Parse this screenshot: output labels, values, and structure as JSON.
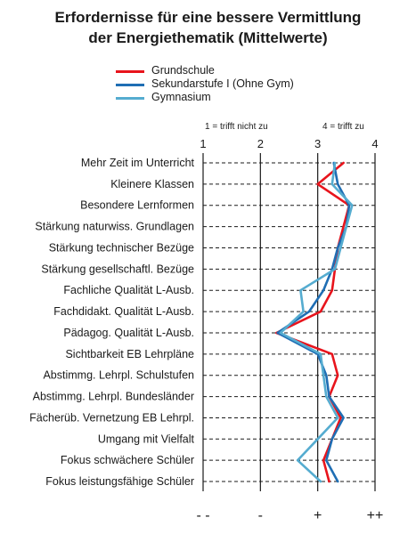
{
  "title_line1": "Erfordernisse für eine bessere Vermittlung",
  "title_line2": "der Energiethematik  (Mittelwerte)",
  "scale_note_left": "1 = trifft nicht zu",
  "scale_note_right": "4 = trifft zu",
  "chart_data": {
    "type": "line",
    "orientation": "horizontal-profile",
    "xlim": [
      1,
      4
    ],
    "x_ticks": [
      "1",
      "2",
      "3",
      "4"
    ],
    "bottom_symbols": [
      "- -",
      "-",
      "+",
      "++"
    ],
    "grid": true,
    "legend_position": "top-left",
    "categories": [
      "Mehr Zeit im Unterricht",
      "Kleinere Klassen",
      "Besondere Lernformen",
      "Stärkung naturwiss. Grundlagen",
      "Stärkung technischer Bezüge",
      "Stärkung gesellschaftl. Bezüge",
      "Fachliche Qualität L-Ausb.",
      "Fachdidakt. Qualität L-Ausb.",
      "Pädagog. Qualität L-Ausb.",
      "Sichtbarkeit EB Lehrpläne",
      "Abstimmg. Lehrpl. Schulstufen",
      "Abstimmg. Lehrpl. Bundesländer",
      "Fächerüb. Vernetzung EB Lehrpl.",
      "Umgang mit Vielfalt",
      "Fokus schwächere Schüler",
      "Fokus leistungsfähige Schüler"
    ],
    "series": [
      {
        "name": "Grundschule",
        "color": "#e8141c",
        "values": [
          3.45,
          3.0,
          3.55,
          3.45,
          3.35,
          3.3,
          3.25,
          3.05,
          2.28,
          3.25,
          3.35,
          3.2,
          3.4,
          3.25,
          3.1,
          3.2
        ]
      },
      {
        "name": "Sekundarstufe I (Ohne Gym)",
        "color": "#1f6eb4",
        "values": [
          3.28,
          3.35,
          3.55,
          3.5,
          3.35,
          3.25,
          3.1,
          2.85,
          2.3,
          3.0,
          3.15,
          3.2,
          3.45,
          3.25,
          3.15,
          3.35
        ]
      },
      {
        "name": "Gymnasium",
        "color": "#55acd0",
        "values": [
          3.3,
          3.25,
          3.6,
          3.5,
          3.4,
          3.3,
          2.7,
          2.75,
          2.35,
          3.05,
          3.1,
          3.15,
          3.35,
          3.0,
          2.65,
          3.05
        ]
      }
    ]
  }
}
